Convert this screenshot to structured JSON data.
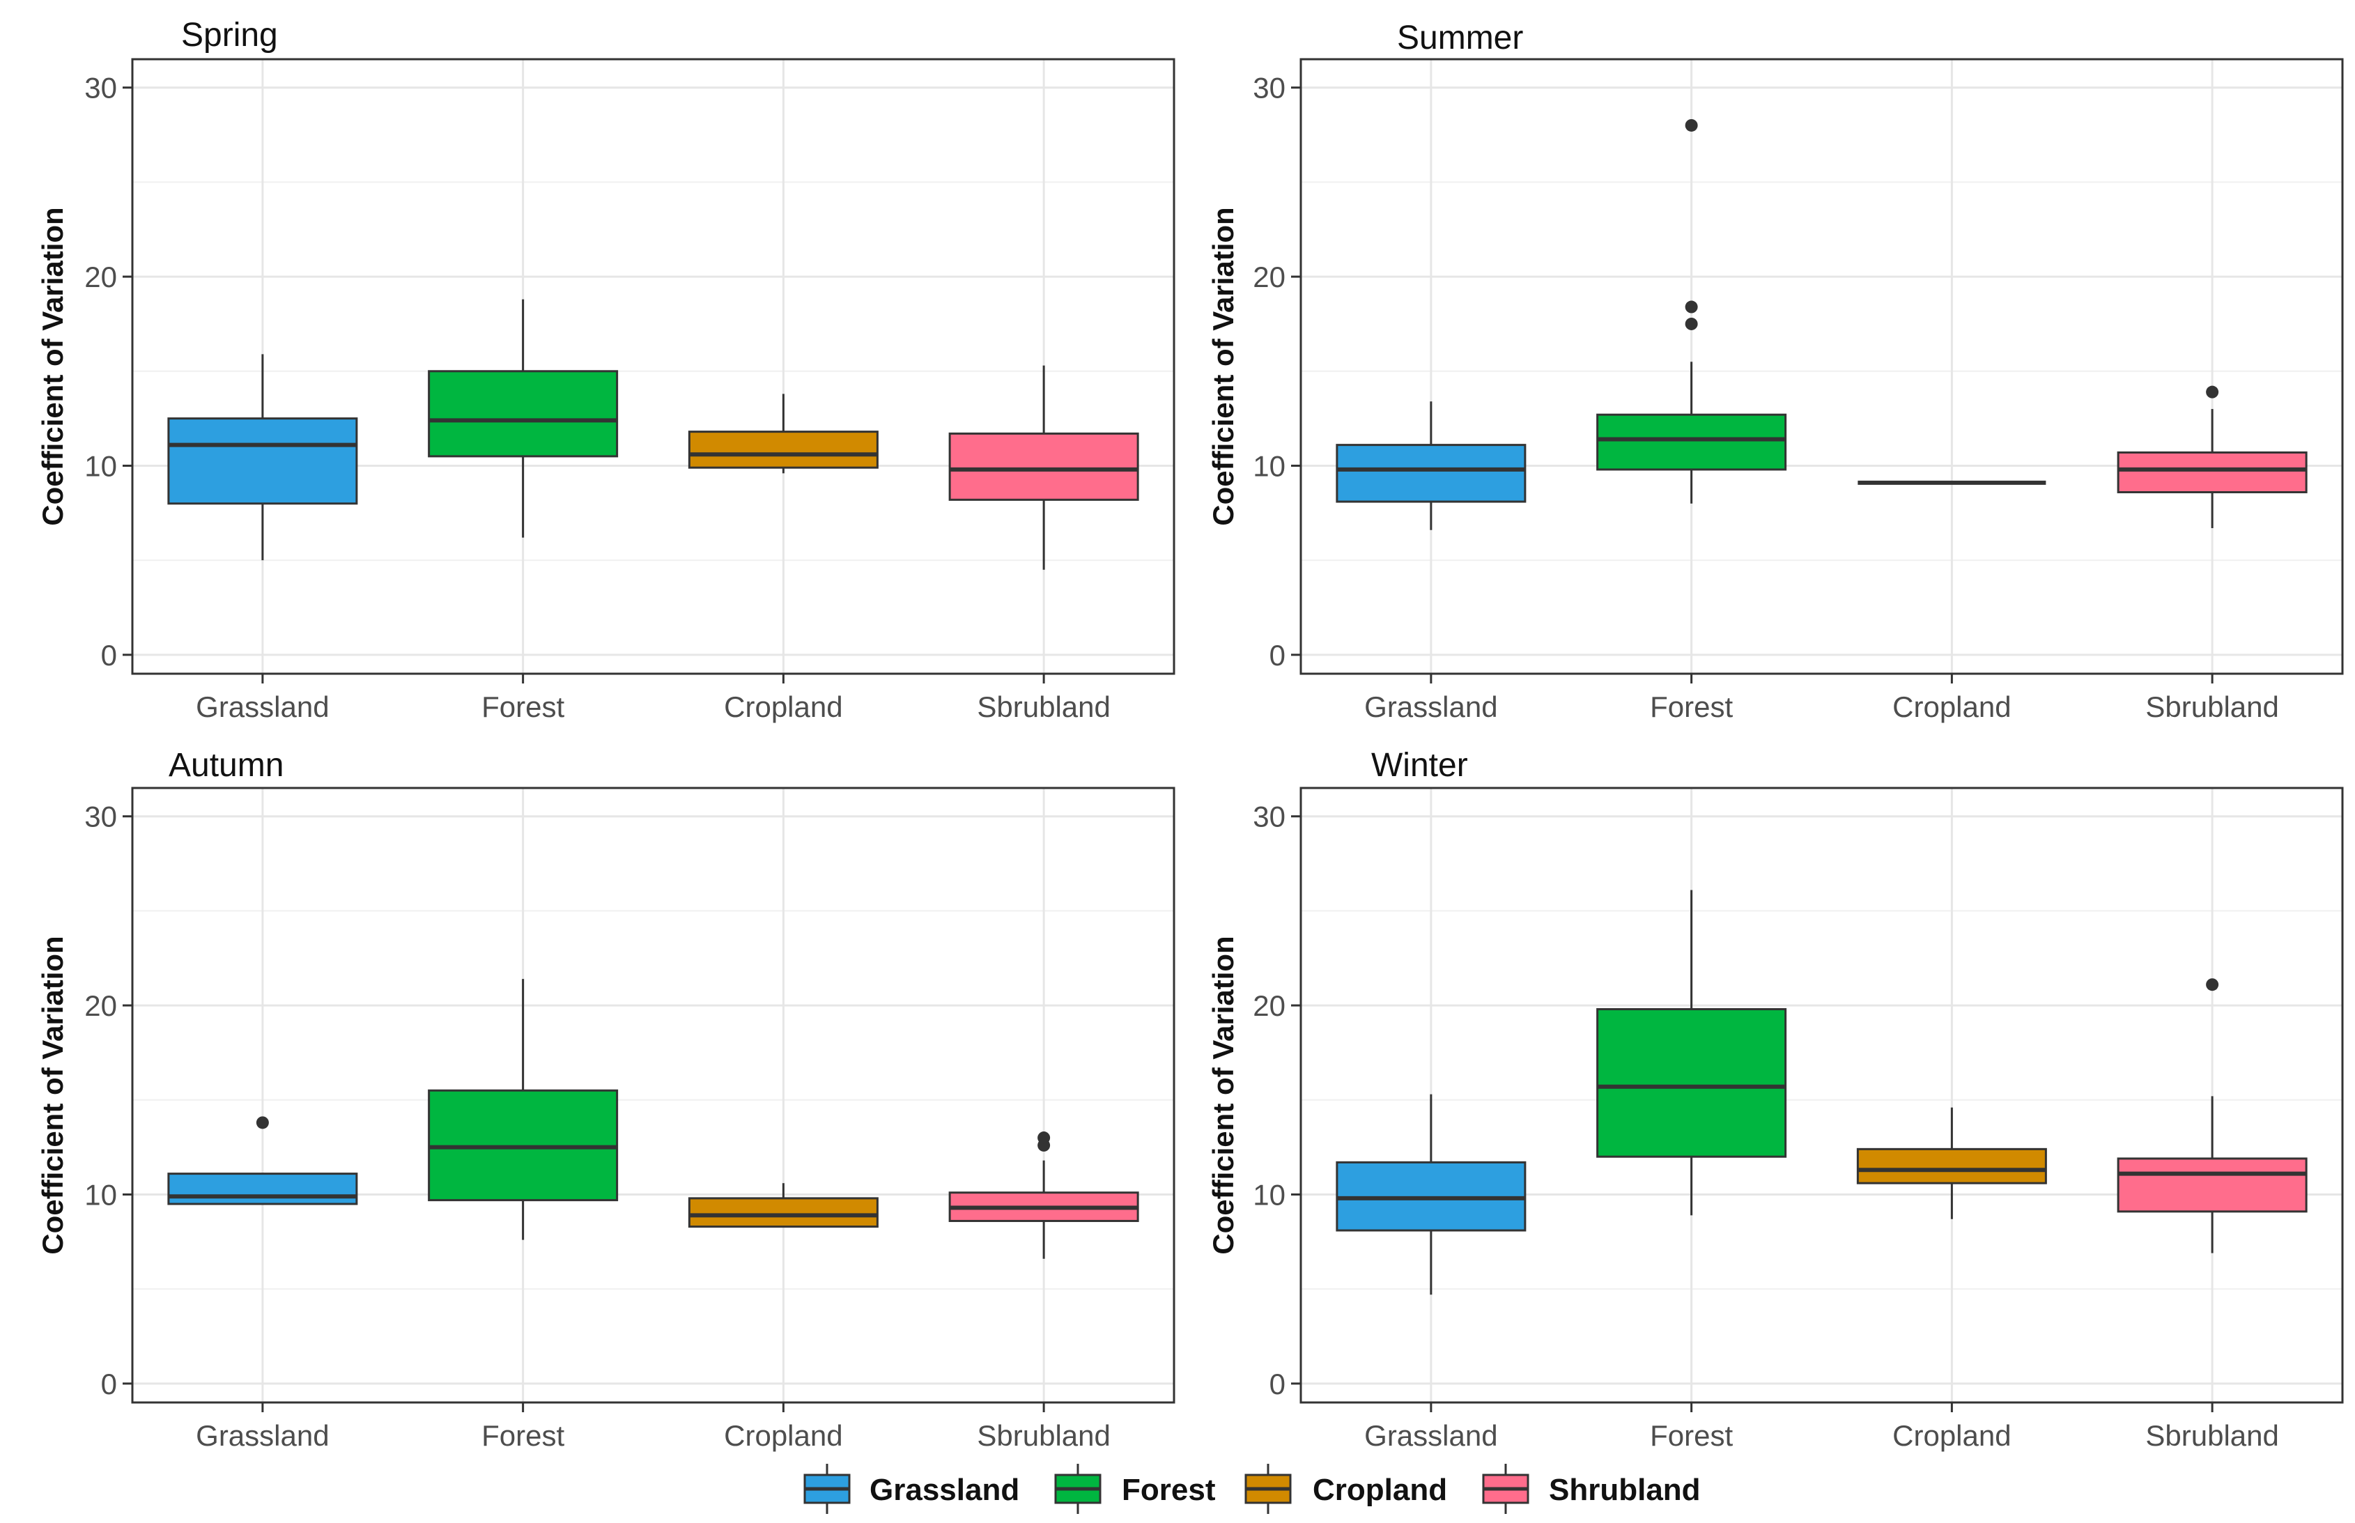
{
  "chart_data": [
    {
      "type": "box",
      "title": "Spring",
      "xlabel": "",
      "ylabel": "Coefficient of Variation",
      "ylim": [
        -1,
        31.5
      ],
      "yticks": [
        0,
        10,
        20,
        30
      ],
      "categories": [
        "Grassland",
        "Forest",
        "Cropland",
        "Sbrubland"
      ],
      "boxes": [
        {
          "min": 5.0,
          "q1": 8.0,
          "median": 11.1,
          "q3": 12.5,
          "max": 15.9,
          "outliers": []
        },
        {
          "min": 6.2,
          "q1": 10.5,
          "median": 12.4,
          "q3": 15.0,
          "max": 18.8,
          "outliers": []
        },
        {
          "min": 9.6,
          "q1": 9.9,
          "median": 10.6,
          "q3": 11.8,
          "max": 13.8,
          "outliers": []
        },
        {
          "min": 4.5,
          "q1": 8.2,
          "median": 9.8,
          "q3": 11.7,
          "max": 15.3,
          "outliers": []
        }
      ]
    },
    {
      "type": "box",
      "title": "Summer",
      "xlabel": "",
      "ylabel": "Coefficient of Variation",
      "ylim": [
        -1,
        31.5
      ],
      "yticks": [
        0,
        10,
        20,
        30
      ],
      "categories": [
        "Grassland",
        "Forest",
        "Cropland",
        "Sbrubland"
      ],
      "boxes": [
        {
          "min": 6.6,
          "q1": 8.1,
          "median": 9.8,
          "q3": 11.1,
          "max": 13.4,
          "outliers": []
        },
        {
          "min": 8.0,
          "q1": 9.8,
          "median": 11.4,
          "q3": 12.7,
          "max": 15.5,
          "outliers": [
            17.5,
            18.4,
            28.0
          ]
        },
        {
          "min": 9.1,
          "q1": 9.1,
          "median": 9.1,
          "q3": 9.1,
          "max": 9.1,
          "outliers": []
        },
        {
          "min": 6.7,
          "q1": 8.6,
          "median": 9.8,
          "q3": 10.7,
          "max": 13.0,
          "outliers": [
            13.9
          ]
        }
      ]
    },
    {
      "type": "box",
      "title": "Autumn",
      "xlabel": "",
      "ylabel": "Coefficient of Variation",
      "ylim": [
        -1,
        31.5
      ],
      "yticks": [
        0,
        10,
        20,
        30
      ],
      "categories": [
        "Grassland",
        "Forest",
        "Cropland",
        "Sbrubland"
      ],
      "boxes": [
        {
          "min": 9.5,
          "q1": 9.5,
          "median": 9.9,
          "q3": 11.1,
          "max": 11.1,
          "outliers": [
            13.8
          ]
        },
        {
          "min": 7.6,
          "q1": 9.7,
          "median": 12.5,
          "q3": 15.5,
          "max": 21.4,
          "outliers": []
        },
        {
          "min": 8.3,
          "q1": 8.3,
          "median": 8.9,
          "q3": 9.8,
          "max": 10.6,
          "outliers": []
        },
        {
          "min": 6.6,
          "q1": 8.6,
          "median": 9.3,
          "q3": 10.1,
          "max": 11.8,
          "outliers": [
            12.6,
            13.0
          ]
        }
      ]
    },
    {
      "type": "box",
      "title": "Winter",
      "xlabel": "",
      "ylabel": "Coefficient of Variation",
      "ylim": [
        -1,
        31.5
      ],
      "yticks": [
        0,
        10,
        20,
        30
      ],
      "categories": [
        "Grassland",
        "Forest",
        "Cropland",
        "Sbrubland"
      ],
      "boxes": [
        {
          "min": 4.7,
          "q1": 8.1,
          "median": 9.8,
          "q3": 11.7,
          "max": 15.3,
          "outliers": []
        },
        {
          "min": 8.9,
          "q1": 12.0,
          "median": 15.7,
          "q3": 19.8,
          "max": 26.1,
          "outliers": []
        },
        {
          "min": 8.7,
          "q1": 10.6,
          "median": 11.3,
          "q3": 12.4,
          "max": 14.6,
          "outliers": []
        },
        {
          "min": 6.9,
          "q1": 9.1,
          "median": 11.1,
          "q3": 11.9,
          "max": 15.2,
          "outliers": [
            21.1
          ]
        }
      ]
    }
  ],
  "series_colors": [
    "#2d9fe0",
    "#00b640",
    "#d18a00",
    "#ff6d8c"
  ],
  "legend": {
    "position": "bottom",
    "items": [
      "Grassland",
      "Forest",
      "Cropland",
      "Shrubland"
    ]
  }
}
